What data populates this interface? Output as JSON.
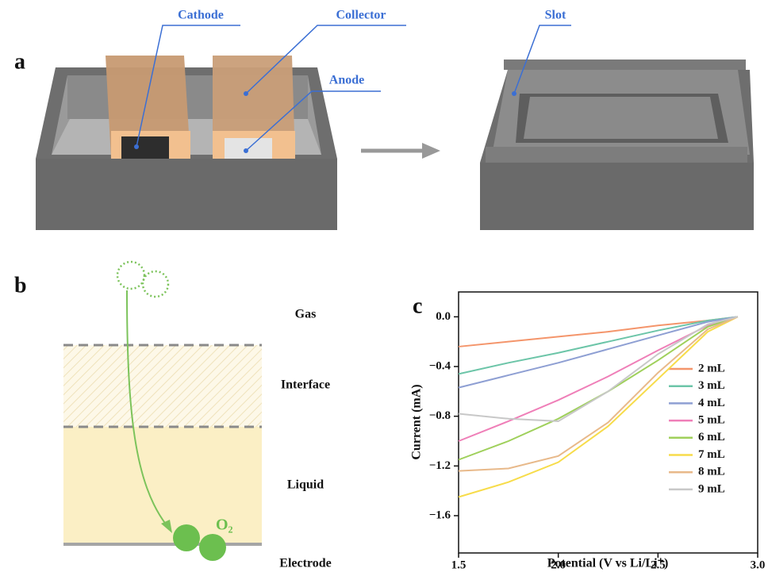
{
  "panel_labels": [
    "a",
    "b",
    "c"
  ],
  "diagram_a": {
    "callouts": [
      "Cathode",
      "Collector",
      "Anode",
      "Slot"
    ]
  },
  "diagram_b": {
    "layers": [
      "Gas",
      "Interface",
      "Liquid",
      "Electrode"
    ],
    "molecule": "O₂"
  },
  "chart_data": {
    "type": "line",
    "x_label": "Potential (V vs Li/Li⁺)",
    "y_label": "Current (mA)",
    "x": [
      1.5,
      1.75,
      2.0,
      2.25,
      2.5,
      2.75,
      2.9
    ],
    "series": [
      {
        "name": "2 mL",
        "color": "#f4956b",
        "values": [
          -0.24,
          -0.2,
          -0.16,
          -0.12,
          -0.07,
          -0.03,
          0
        ]
      },
      {
        "name": "3 mL",
        "color": "#6cc5a8",
        "values": [
          -0.46,
          -0.37,
          -0.29,
          -0.2,
          -0.11,
          -0.03,
          0
        ]
      },
      {
        "name": "4 mL",
        "color": "#8e9fd3",
        "values": [
          -0.57,
          -0.47,
          -0.37,
          -0.26,
          -0.15,
          -0.04,
          0
        ]
      },
      {
        "name": "5 mL",
        "color": "#ef7fb8",
        "values": [
          -1.0,
          -0.84,
          -0.67,
          -0.48,
          -0.27,
          -0.07,
          0
        ]
      },
      {
        "name": "6 mL",
        "color": "#9fd05b",
        "values": [
          -1.15,
          -1.0,
          -0.82,
          -0.6,
          -0.35,
          -0.08,
          0
        ]
      },
      {
        "name": "7 mL",
        "color": "#f7dc4a",
        "values": [
          -1.45,
          -1.33,
          -1.17,
          -0.88,
          -0.5,
          -0.12,
          0
        ]
      },
      {
        "name": "8 mL",
        "color": "#e8b98a",
        "values": [
          -1.24,
          -1.22,
          -1.12,
          -0.85,
          -0.45,
          -0.1,
          0
        ]
      },
      {
        "name": "9 mL",
        "color": "#c8c8c8",
        "values": [
          -0.78,
          -0.82,
          -0.84,
          -0.6,
          -0.3,
          -0.06,
          0
        ]
      }
    ],
    "xlim": [
      1.5,
      3.0
    ],
    "ylim": [
      -1.9,
      0.2
    ],
    "xticks": [
      1.5,
      {
        "value": 2,
        "label": "2.0"
      },
      2.5,
      {
        "value": 3,
        "label": "3.0"
      }
    ],
    "yticks": [
      {
        "value": 0,
        "label": "0.0"
      },
      {
        "value": -0.4,
        "label": "−0.4"
      },
      {
        "value": -0.8,
        "label": "−0.8"
      },
      {
        "value": -1.2,
        "label": "−1.2"
      },
      {
        "value": -1.6,
        "label": "−1.6"
      }
    ],
    "legend": "right"
  }
}
